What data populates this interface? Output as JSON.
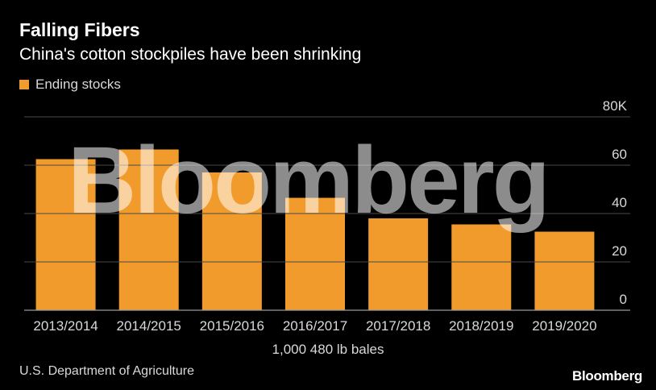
{
  "chart_data": {
    "type": "bar",
    "title": "Falling Fibers",
    "subtitle": "China's cotton stockpiles have been shrinking",
    "categories": [
      "2013/2014",
      "2014/2015",
      "2015/2016",
      "2016/2017",
      "2017/2018",
      "2018/2019",
      "2019/2020"
    ],
    "series": [
      {
        "name": "Ending stocks",
        "values": [
          62.5,
          66.5,
          57.0,
          46.5,
          38.0,
          35.5,
          32.5
        ]
      }
    ],
    "ylim": [
      0,
      80
    ],
    "yticks": [
      {
        "value": 0,
        "label": "0"
      },
      {
        "value": 20,
        "label": "20"
      },
      {
        "value": 40,
        "label": "40"
      },
      {
        "value": 60,
        "label": "60"
      },
      {
        "value": 80,
        "label": "80K"
      }
    ],
    "xlabel": "1,000 480 lb bales",
    "ylabel": "",
    "grid": true,
    "legend_position": "top-left",
    "bar_color": "#F19B2C"
  },
  "source": "U.S. Department of Agriculture",
  "brand": "Bloomberg",
  "watermark": "Bloomberg"
}
